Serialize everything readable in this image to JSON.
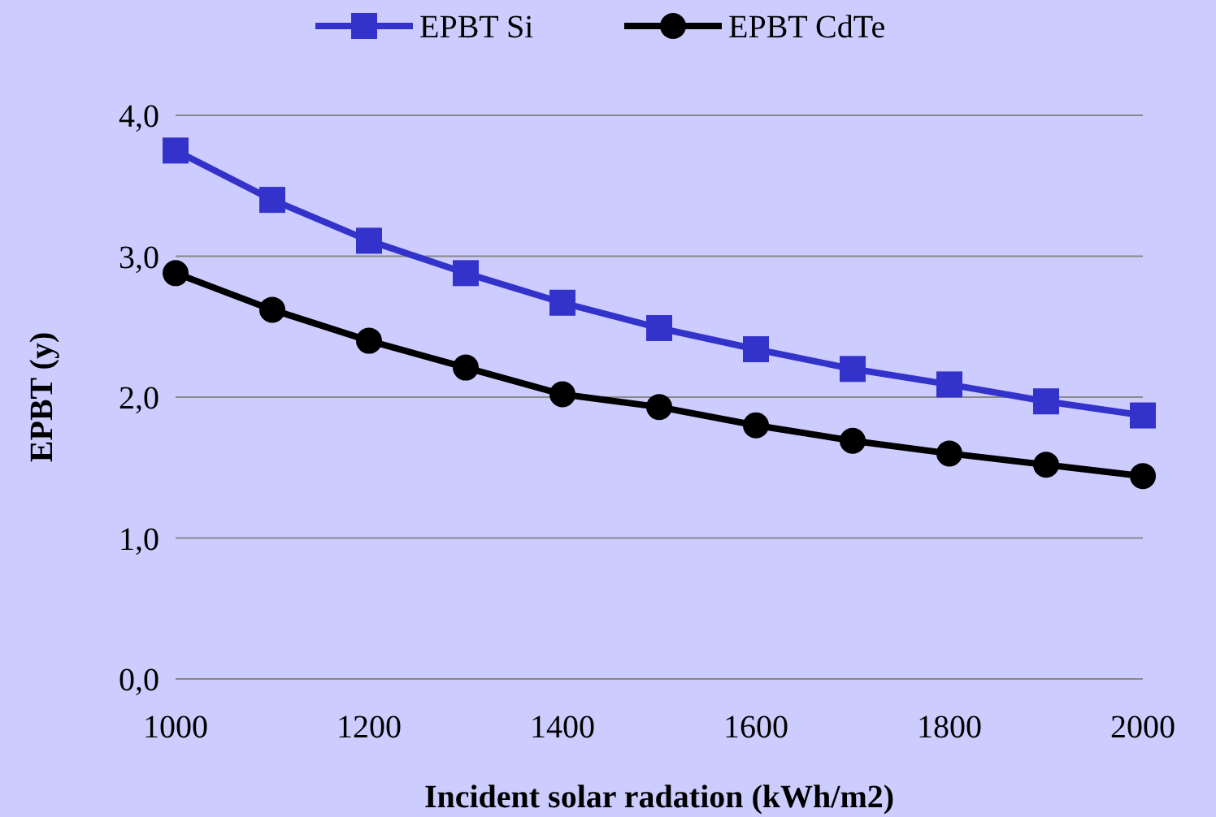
{
  "chart_data": {
    "type": "line",
    "xlabel": "Incident solar radation (kWh/m2)",
    "ylabel": "EPBT (y)",
    "x": [
      1000,
      1100,
      1200,
      1300,
      1400,
      1500,
      1600,
      1700,
      1800,
      1900,
      2000
    ],
    "series": [
      {
        "name": "EPBT Si",
        "color": "#3333cc",
        "marker": "square",
        "values": [
          3.75,
          3.4,
          3.11,
          2.88,
          2.67,
          2.49,
          2.34,
          2.2,
          2.09,
          1.97,
          1.87
        ]
      },
      {
        "name": "EPBT CdTe",
        "color": "#000000",
        "marker": "circle",
        "values": [
          2.88,
          2.62,
          2.4,
          2.21,
          2.02,
          1.93,
          1.8,
          1.69,
          1.6,
          1.52,
          1.44
        ]
      }
    ],
    "xlim": [
      1000,
      2000
    ],
    "xticks": [
      1000,
      1200,
      1400,
      1600,
      1800,
      2000
    ],
    "ylim": [
      0,
      4
    ],
    "yticks": [
      {
        "value": 0,
        "label": "0,0"
      },
      {
        "value": 1,
        "label": "1,0"
      },
      {
        "value": 2,
        "label": "2,0"
      },
      {
        "value": 3,
        "label": "3,0"
      },
      {
        "value": 4,
        "label": "4,0"
      }
    ],
    "grid": "y",
    "legend": "top",
    "line_style": "solid"
  }
}
